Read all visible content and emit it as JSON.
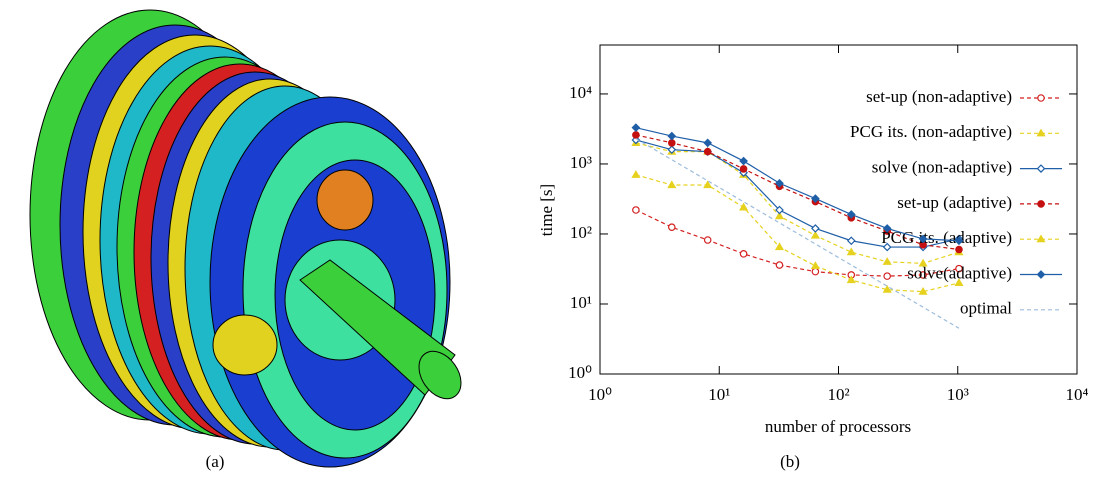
{
  "panel_labels": [
    "(a)",
    "(b)"
  ],
  "chart_data": {
    "type": "line",
    "log_x": true,
    "log_y": true,
    "x_label": "number of processors",
    "y_label": "time [s]",
    "x": [
      2,
      4,
      8,
      16,
      32,
      64,
      128,
      256,
      512,
      1024
    ],
    "xlim": [
      1,
      10000
    ],
    "ylim": [
      1,
      50000
    ],
    "xticks": [
      {
        "value": 1,
        "label": "10⁰"
      },
      {
        "value": 10,
        "label": "10¹"
      },
      {
        "value": 100,
        "label": "10²"
      },
      {
        "value": 1000,
        "label": "10³"
      },
      {
        "value": 10000,
        "label": "10⁴"
      }
    ],
    "yticks": [
      {
        "value": 1,
        "label": "10⁰"
      },
      {
        "value": 10,
        "label": "10¹"
      },
      {
        "value": 100,
        "label": "10²"
      },
      {
        "value": 1000,
        "label": "10³"
      },
      {
        "value": 10000,
        "label": "10⁴"
      }
    ],
    "legend": "upper right",
    "series": [
      {
        "name": "set-up (non-adaptive)",
        "color": "#d42020",
        "marker": "circle-open",
        "dash": true,
        "values": [
          220,
          125,
          82,
          52,
          36,
          29,
          26,
          25,
          26,
          32
        ]
      },
      {
        "name": "PCG its. (non-adaptive)",
        "color": "#e6d21e",
        "marker": "triangle",
        "dash": true,
        "values": [
          2000,
          1500,
          1500,
          700,
          180,
          95,
          55,
          40,
          38,
          55
        ]
      },
      {
        "name": "solve (non-adaptive)",
        "color": "#1f5fa8",
        "marker": "diamond-open",
        "dash": false,
        "values": [
          2200,
          1600,
          1500,
          750,
          220,
          120,
          80,
          65,
          65,
          85
        ]
      },
      {
        "name": "set-up (adaptive)",
        "color": "#c41010",
        "marker": "circle",
        "dash": true,
        "values": [
          2600,
          2000,
          1500,
          850,
          480,
          290,
          170,
          110,
          70,
          60
        ]
      },
      {
        "name": "PCG its. (adaptive)",
        "color": "#e6d21e",
        "marker": "triangle",
        "dash": true,
        "values": [
          700,
          500,
          500,
          240,
          65,
          35,
          22,
          16,
          15,
          20
        ]
      },
      {
        "name": "solve(adaptive)",
        "color": "#1f5fa8",
        "marker": "diamond",
        "dash": false,
        "values": [
          3300,
          2500,
          2000,
          1100,
          530,
          320,
          190,
          120,
          85,
          80
        ]
      },
      {
        "name": "optimal",
        "color": "#9dbcdc",
        "marker": "none",
        "dash": true,
        "values": [
          2300,
          1150,
          575,
          288,
          144,
          72,
          36,
          18,
          9,
          4.5
        ]
      }
    ]
  }
}
